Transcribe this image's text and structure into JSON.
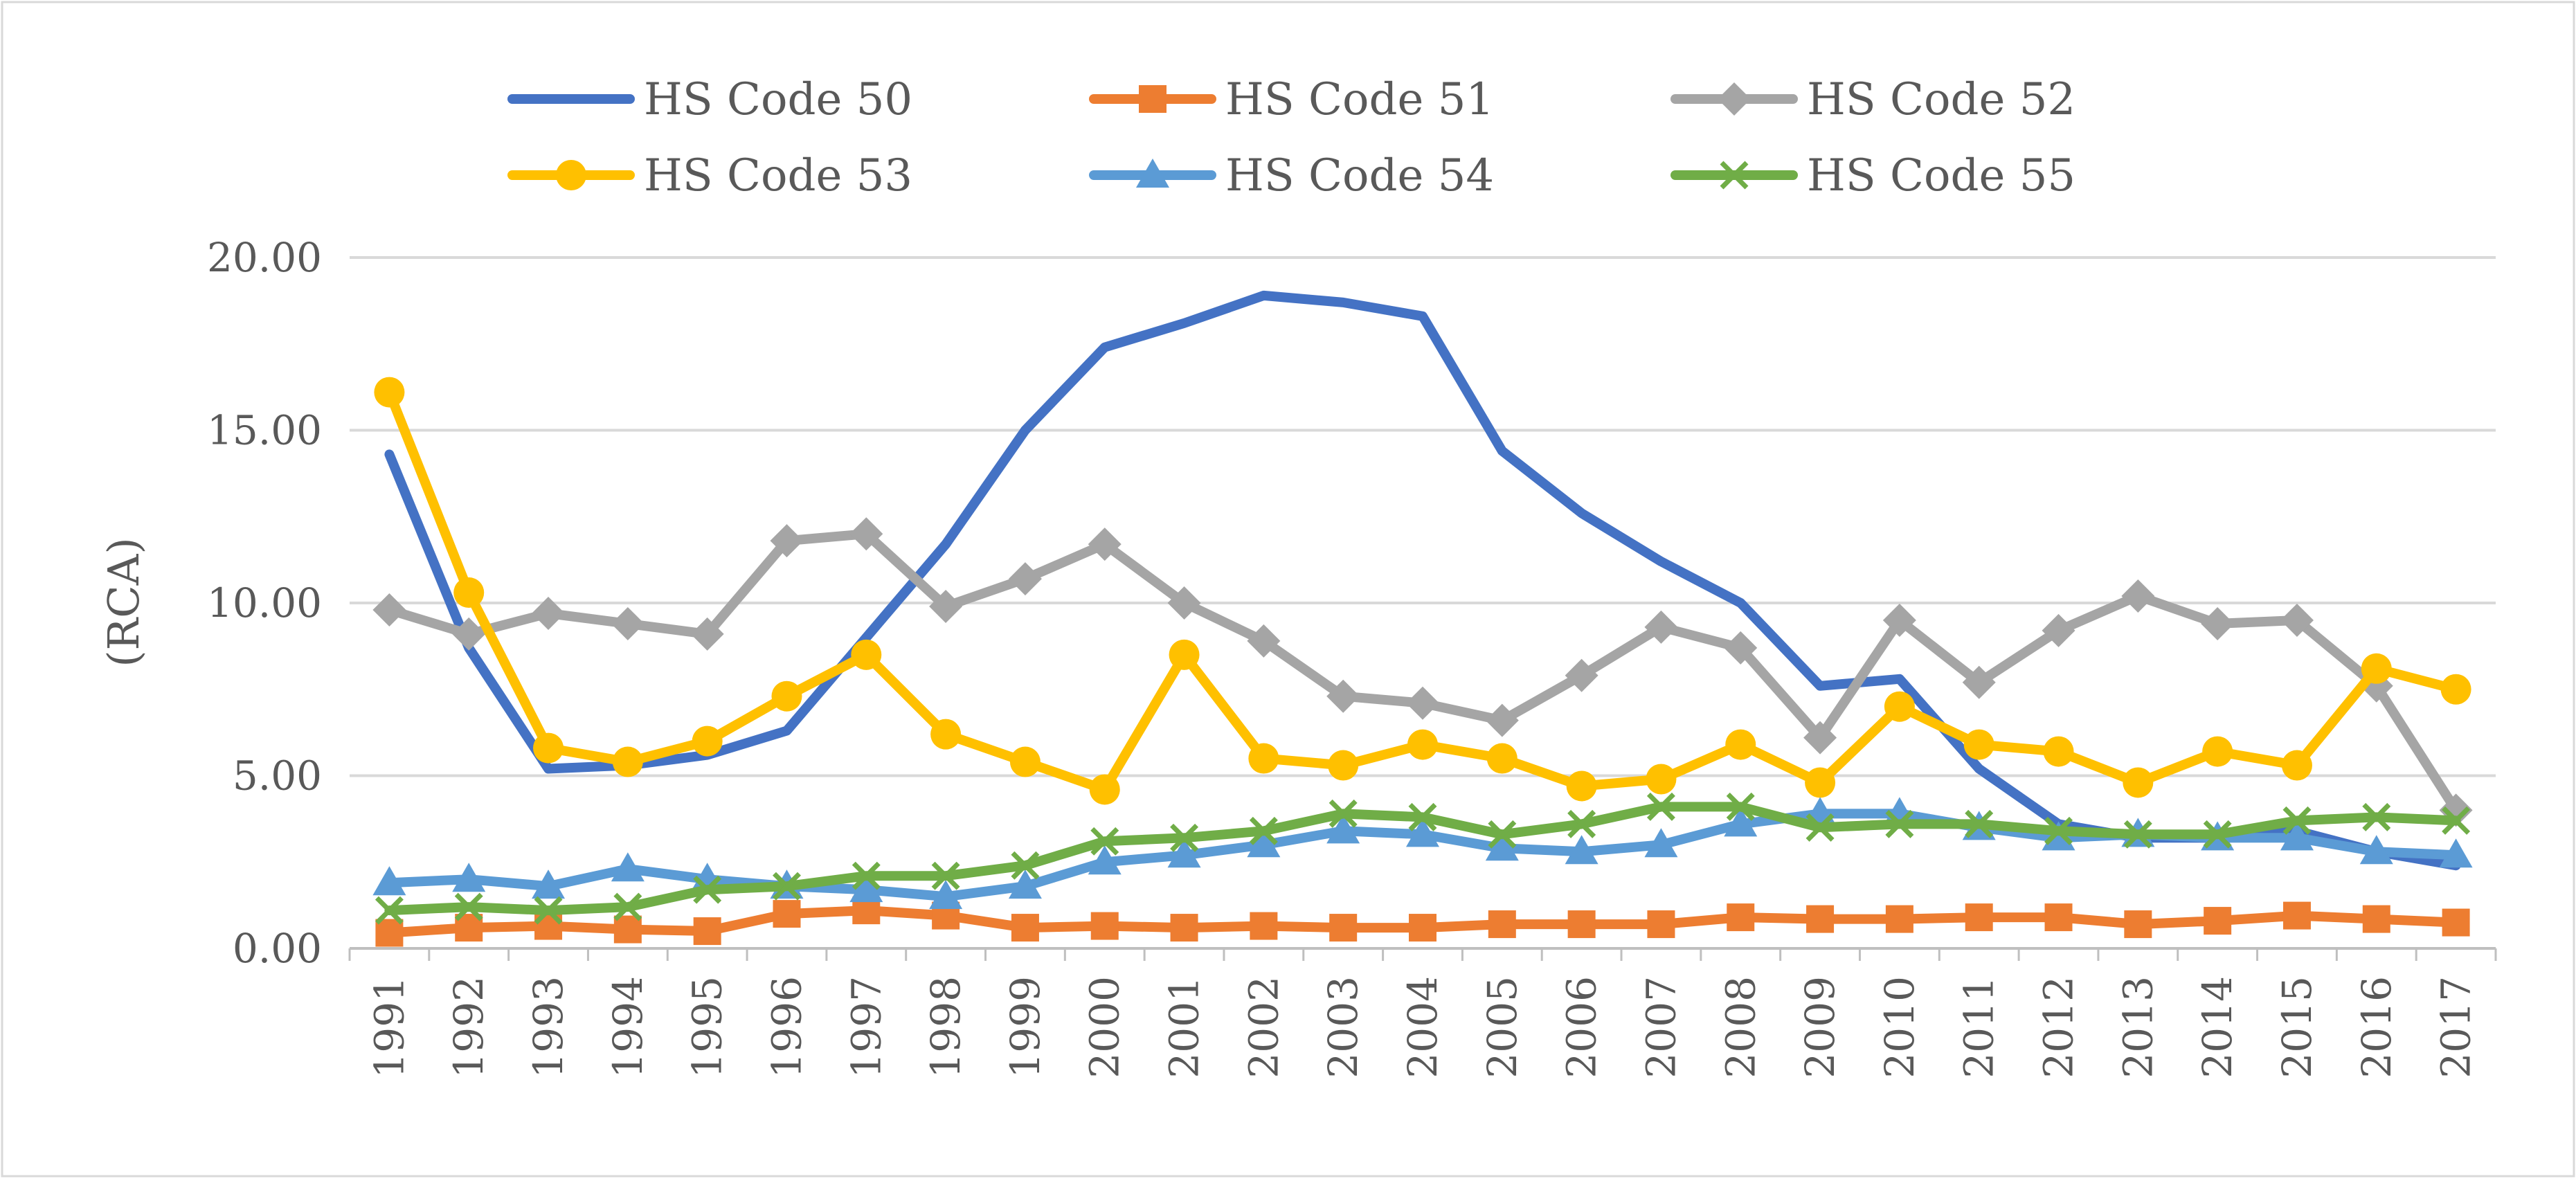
{
  "chart_data": {
    "type": "line",
    "title": "",
    "xlabel": "",
    "ylabel": "(RCA)",
    "ylim": [
      0,
      20
    ],
    "yticks": [
      "0.00",
      "5.00",
      "10.00",
      "15.00",
      "20.00"
    ],
    "y_gridlines": true,
    "legend_position": "top",
    "x": [
      "1991",
      "1992",
      "1993",
      "1994",
      "1995",
      "1996",
      "1997",
      "1998",
      "1999",
      "2000",
      "2001",
      "2002",
      "2003",
      "2004",
      "2005",
      "2006",
      "2007",
      "2008",
      "2009",
      "2010",
      "2011",
      "2012",
      "2013",
      "2014",
      "2015",
      "2016",
      "2017"
    ],
    "series": [
      {
        "name": "HS Code 50",
        "color": "#4472C4",
        "marker": "none",
        "values": [
          14.3,
          8.7,
          5.2,
          5.3,
          5.6,
          6.3,
          9.0,
          11.7,
          15.0,
          17.4,
          18.1,
          18.9,
          18.7,
          18.3,
          14.4,
          12.6,
          11.2,
          10.0,
          7.6,
          7.8,
          5.2,
          3.6,
          3.2,
          3.2,
          3.4,
          2.8,
          2.4
        ]
      },
      {
        "name": "HS Code 51",
        "color": "#ED7D31",
        "marker": "square",
        "values": [
          0.45,
          0.6,
          0.65,
          0.55,
          0.5,
          1.0,
          1.1,
          0.95,
          0.6,
          0.65,
          0.6,
          0.65,
          0.6,
          0.6,
          0.7,
          0.7,
          0.7,
          0.9,
          0.85,
          0.85,
          0.9,
          0.9,
          0.7,
          0.8,
          0.95,
          0.85,
          0.75
        ]
      },
      {
        "name": "HS Code 52",
        "color": "#A5A5A5",
        "marker": "diamond",
        "values": [
          9.8,
          9.1,
          9.7,
          9.4,
          9.1,
          11.8,
          12.0,
          9.9,
          10.7,
          11.7,
          10.0,
          8.9,
          7.3,
          7.1,
          6.6,
          7.9,
          9.3,
          8.7,
          6.1,
          9.5,
          7.7,
          9.2,
          10.2,
          9.4,
          9.5,
          7.6,
          4.0
        ]
      },
      {
        "name": "HS Code 53",
        "color": "#FFC000",
        "marker": "circle",
        "values": [
          16.1,
          10.3,
          5.8,
          5.4,
          6.0,
          7.3,
          8.5,
          6.2,
          5.4,
          4.6,
          8.5,
          5.5,
          5.3,
          5.9,
          5.5,
          4.7,
          4.9,
          5.9,
          4.8,
          7.0,
          5.9,
          5.7,
          4.8,
          5.7,
          5.3,
          8.1,
          7.5
        ]
      },
      {
        "name": "HS Code 54",
        "color": "#5B9BD5",
        "marker": "triangle",
        "values": [
          1.9,
          2.0,
          1.8,
          2.3,
          2.0,
          1.8,
          1.7,
          1.5,
          1.8,
          2.5,
          2.7,
          3.0,
          3.4,
          3.3,
          2.9,
          2.8,
          3.0,
          3.6,
          3.9,
          3.9,
          3.5,
          3.2,
          3.3,
          3.2,
          3.2,
          2.8,
          2.7
        ]
      },
      {
        "name": "HS Code 55",
        "color": "#70AD47",
        "marker": "x",
        "values": [
          1.1,
          1.2,
          1.1,
          1.2,
          1.7,
          1.8,
          2.1,
          2.1,
          2.4,
          3.1,
          3.2,
          3.4,
          3.9,
          3.8,
          3.3,
          3.6,
          4.1,
          4.1,
          3.5,
          3.6,
          3.6,
          3.4,
          3.3,
          3.3,
          3.7,
          3.8,
          3.7
        ]
      }
    ]
  }
}
